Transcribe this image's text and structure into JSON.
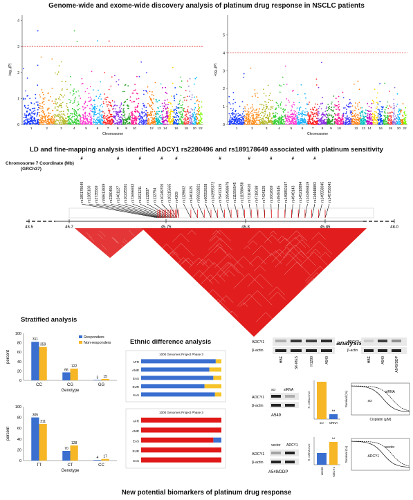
{
  "header": {
    "title": "Genome-wide and exome-wide discovery analysis of platinum drug response in NSCLC patients"
  },
  "manhattan": {
    "ylabel": "-log₁₀(P)",
    "xlabel": "Chromosome",
    "left_ticks": [
      "0",
      "1",
      "2",
      "3",
      "4"
    ],
    "right_ticks": [
      "0",
      "1",
      "2",
      "3",
      "4",
      "5"
    ],
    "chromosomes": [
      "1",
      "2",
      "3",
      "4",
      "5",
      "6",
      "7",
      "8",
      "9",
      "10",
      "11",
      "12",
      "13",
      "14",
      "15",
      "16",
      "17",
      "18",
      "19",
      "20",
      "21",
      "22"
    ],
    "colors": [
      "#1a3cff",
      "#ff8c1a",
      "#b5b82a",
      "#3ad13a",
      "#ff3ad2",
      "#1ab3ff",
      "#ff2020",
      "#8a2be2",
      "#2aa02a",
      "#ff1493",
      "#3a3aff",
      "#ff7f0e",
      "#00c0c0",
      "#c000c0",
      "#ffd700",
      "#0040ff",
      "#33cc33",
      "#ff4040",
      "#9370db",
      "#00bfff",
      "#ff8000",
      "#7cfc00"
    ]
  },
  "ld": {
    "title": "LD and fine-mapping analysis identified ADCY1 rs2280496 and rs189178649 associated with platinum sensitivity",
    "coord_label": "Chromosome 7 Coordinate (Mb)",
    "build_label": "(GRCh37)",
    "snps": [
      "rs189178649",
      "rs2285100",
      "rs3735569",
      "rs58613839",
      "rs2280496",
      "rs2461127",
      "rs10225591",
      "rs73696932",
      "rs1821211",
      "rs112937",
      "rs112754",
      "rs10249705",
      "rs10215665",
      "rs4209",
      "rs1129602",
      "rs2461125",
      "rs59922821",
      "rs60552628",
      "rs142955372",
      "rs79472129",
      "rs199499979",
      "rs111556545",
      "rs111588458",
      "rs73104620",
      "rs4718038",
      "rs7424125",
      "rs1062669",
      "rs4949145",
      "rs149850197",
      "rs4949143",
      "rs145218894",
      "rs143455819",
      "rs114448893",
      "rs149558045",
      "rs145756043"
    ],
    "axis_labels": [
      "43.5",
      "45.7",
      "45.75",
      "45.8",
      "45.85",
      "48.0"
    ]
  },
  "stratified": {
    "title": "Stratified analysis",
    "ylabel": "percent",
    "xlabel": "Genotype",
    "legend": [
      "Responders",
      "Non-responders"
    ],
    "colors": {
      "responders": "#3a6fd0",
      "non_responders": "#f6b625"
    },
    "chart1": {
      "categories": [
        "CC",
        "CG",
        "GG"
      ],
      "responders": [
        82,
        17,
        1
      ],
      "non_responders": [
        71,
        25,
        3
      ],
      "labels_r": [
        "311",
        "66",
        "3"
      ],
      "labels_n": [
        "359",
        "122",
        "15"
      ]
    },
    "chart2": {
      "categories": [
        "TT",
        "CT",
        "CC"
      ],
      "responders": [
        80,
        18,
        1
      ],
      "non_responders": [
        68,
        28,
        3
      ],
      "labels_r": [
        "305",
        "70",
        "4"
      ],
      "labels_n": [
        "311",
        "128",
        "17"
      ]
    },
    "ticks": [
      "0",
      "20",
      "40",
      "60",
      "80",
      "100"
    ]
  },
  "ethnic": {
    "title": "Ethnic difference analysis",
    "subtitle": "1000 Genomes Project Phase 3",
    "populations": [
      "AFR",
      "AMR",
      "EAS",
      "EUR",
      "SAS"
    ],
    "chart1": {
      "blue": [
        0.93,
        0.85,
        0.9,
        0.79,
        0.92
      ],
      "other": [
        0.07,
        0.15,
        0.1,
        0.21,
        0.08
      ]
    },
    "chart2": {
      "blue": [
        0.0,
        0.0,
        0.1,
        0.0,
        0.0
      ],
      "other": [
        1,
        1,
        0.9,
        1,
        1
      ]
    }
  },
  "invitro": {
    "title": "in vitro analysis",
    "wb1_label": "ADCY1",
    "actin_label": "β-actin",
    "cells1": [
      "HBE",
      "SK-MES",
      "H1299",
      "A549"
    ],
    "cells2": [
      "HBE",
      "A549",
      "A549/DDP"
    ],
    "knock_label": "A549",
    "over_label": "A549/DDP",
    "scr": "scr",
    "sirna": "siRNA",
    "vector": "vector",
    "adcy1": "ADCY1",
    "mrna_ylabel": "R. mRNA level",
    "survival_ylabel": "Survival (%)",
    "cisplatin_label": "Cisplatin (µM)",
    "sig": "**"
  },
  "footer": {
    "title": "New potential biomarkers of platinum drug response"
  }
}
